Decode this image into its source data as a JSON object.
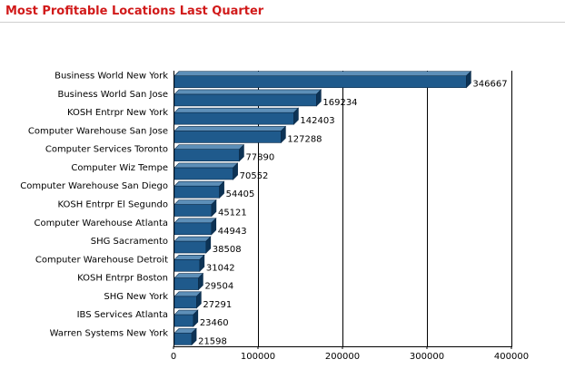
{
  "header": {
    "title": "Most Profitable Locations Last Quarter"
  },
  "colors": {
    "bar": "#1f5a8c",
    "bar_top": "#5d8fb8",
    "bar_side": "#0d3355",
    "bar_edge": "#0a2a48",
    "grid": "#000000"
  },
  "chart_data": {
    "type": "bar",
    "orientation": "horizontal",
    "title": "Most Profitable Locations Last Quarter",
    "xlabel": "",
    "ylabel": "",
    "grid": true,
    "xlim": [
      0,
      400000
    ],
    "x_ticks": [
      0,
      100000,
      200000,
      300000,
      400000
    ],
    "categories": [
      "Business World New York",
      "Business World San Jose",
      "KOSH Entrpr New York",
      "Computer Warehouse San Jose",
      "Computer Services Toronto",
      "Computer Wiz Tempe",
      "Computer Warehouse San Diego",
      "KOSH Entrpr El Segundo",
      "Computer Warehouse Atlanta",
      "SHG Sacramento",
      "Computer Warehouse Detroit",
      "KOSH Entrpr Boston",
      "SHG New York",
      "IBS Services Atlanta",
      "Warren Systems New York"
    ],
    "values": [
      346667,
      169234,
      142403,
      127288,
      77890,
      70552,
      54405,
      45121,
      44943,
      38508,
      31042,
      29504,
      27291,
      23460,
      21598
    ]
  }
}
